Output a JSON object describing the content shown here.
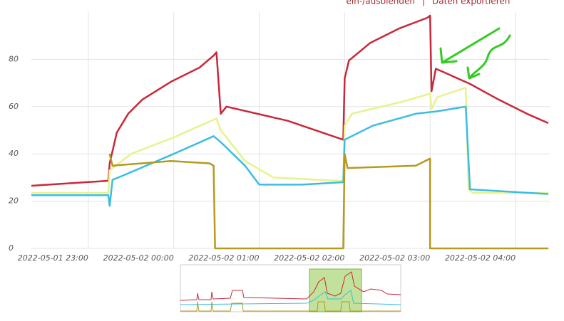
{
  "links": [
    "ein-/ausblenden",
    "Daten exportieren"
  ],
  "chart_data": {
    "type": "line",
    "xlim": [
      "2022-05-01 22:20",
      "2022-05-02 04:24"
    ],
    "xticks": [
      "2022-05-01 23:00",
      "2022-05-02 00:00",
      "2022-05-02 01:00",
      "2022-05-02 02:00",
      "2022-05-02 03:00",
      "2022-05-02 04:00"
    ],
    "ylim": [
      0,
      100
    ],
    "yticks": [
      0,
      20,
      40,
      60,
      80
    ],
    "grid": true,
    "series": [
      {
        "color": "#c9283a",
        "x": [
          "2022-05-01 22:20",
          "2022-05-01 23:14",
          "2022-05-01 23:15",
          "2022-05-01 23:20",
          "2022-05-01 23:28",
          "2022-05-01 23:38",
          "2022-05-01 23:58",
          "2022-05-02 00:18",
          "2022-05-02 00:28",
          "2022-05-02 00:30",
          "2022-05-02 00:33",
          "2022-05-02 00:37",
          "2022-05-02 01:20",
          "2022-05-02 01:59",
          "2022-05-02 02:00",
          "2022-05-02 02:03",
          "2022-05-02 02:18",
          "2022-05-02 02:38",
          "2022-05-02 02:58",
          "2022-05-02 03:00",
          "2022-05-02 03:01",
          "2022-05-02 03:04",
          "2022-05-02 03:08",
          "2022-05-02 03:28",
          "2022-05-02 03:48",
          "2022-05-02 04:08",
          "2022-05-02 04:23"
        ],
        "values": [
          26.5,
          28.6,
          36,
          49,
          57,
          63,
          70.5,
          76.5,
          81.6,
          83,
          57,
          60,
          54,
          46,
          72,
          79.5,
          87,
          93,
          97.6,
          98.5,
          66.5,
          76,
          75,
          69.6,
          63,
          57,
          53
        ]
      },
      {
        "color": "#e8f28c",
        "x": [
          "2022-05-01 22:20",
          "2022-05-01 23:14",
          "2022-05-01 23:15",
          "2022-05-01 23:30",
          "2022-05-02 00:00",
          "2022-05-02 00:30",
          "2022-05-02 00:33",
          "2022-05-02 00:50",
          "2022-05-02 01:10",
          "2022-05-02 01:59",
          "2022-05-02 02:00",
          "2022-05-02 02:05",
          "2022-05-02 02:40",
          "2022-05-02 03:00",
          "2022-05-02 03:01",
          "2022-05-02 03:05",
          "2022-05-02 03:20",
          "2022-05-02 03:25",
          "2022-05-02 03:27",
          "2022-05-02 03:30",
          "2022-05-02 04:23"
        ],
        "values": [
          23.5,
          23.5,
          33,
          40,
          47,
          55,
          50,
          37,
          30,
          28.5,
          52,
          57,
          62,
          65.5,
          59,
          64,
          67,
          68,
          25,
          23.5,
          23.5
        ]
      },
      {
        "color": "#3bbde2",
        "x": [
          "2022-05-01 22:20",
          "2022-05-01 23:14",
          "2022-05-01 23:15",
          "2022-05-01 23:17",
          "2022-05-01 23:25",
          "2022-05-02 00:00",
          "2022-05-02 00:28",
          "2022-05-02 00:33",
          "2022-05-02 00:50",
          "2022-05-02 01:00",
          "2022-05-02 01:30",
          "2022-05-02 01:59",
          "2022-05-02 02:00",
          "2022-05-02 02:20",
          "2022-05-02 02:50",
          "2022-05-02 03:05",
          "2022-05-02 03:25",
          "2022-05-02 03:28",
          "2022-05-02 04:23"
        ],
        "values": [
          22.5,
          22.5,
          18,
          29,
          31,
          40,
          47.5,
          45,
          35,
          27,
          27,
          28,
          46,
          52,
          57,
          58,
          60,
          25,
          23
        ]
      },
      {
        "color": "#b59a1e",
        "x": [
          "2022-05-01 23:15",
          "2022-05-01 23:17",
          "2022-05-01 23:58",
          "2022-05-02 00:25",
          "2022-05-02 00:28",
          "2022-05-02 00:29",
          "2022-05-02 01:59",
          "2022-05-02 02:00",
          "2022-05-02 02:02",
          "2022-05-02 02:50",
          "2022-05-02 03:00",
          "2022-05-02 03:00",
          "2022-05-02 04:23"
        ],
        "values": [
          40,
          35,
          37,
          36,
          35,
          0,
          0,
          40,
          34,
          35,
          38,
          0,
          0
        ]
      }
    ]
  }
}
